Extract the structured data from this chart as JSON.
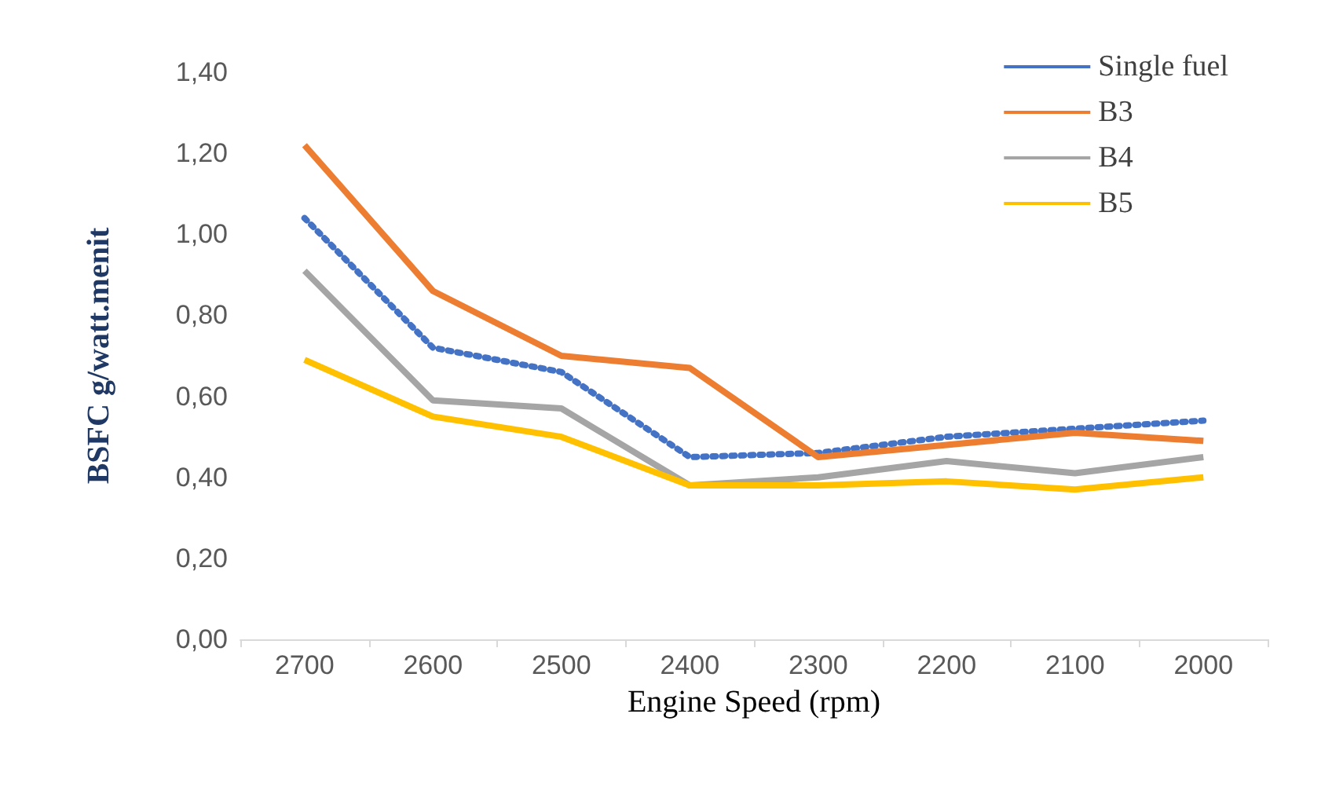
{
  "chart_data": {
    "type": "line",
    "xlabel": "Engine Speed (rpm)",
    "ylabel": "BSFC g/watt.menit",
    "categories": [
      "2700",
      "2600",
      "2500",
      "2400",
      "2300",
      "2200",
      "2100",
      "2000"
    ],
    "series": [
      {
        "name": "Single fuel",
        "color": "#4472c4",
        "line_style": "dotted",
        "values": [
          1.04,
          0.72,
          0.66,
          0.45,
          0.46,
          0.5,
          0.52,
          0.54
        ]
      },
      {
        "name": "B3",
        "color": "#ed7d31",
        "line_style": "solid",
        "values": [
          1.22,
          0.86,
          0.7,
          0.67,
          0.45,
          0.48,
          0.51,
          0.49
        ]
      },
      {
        "name": "B4",
        "color": "#a5a5a5",
        "line_style": "solid",
        "values": [
          0.91,
          0.59,
          0.57,
          0.38,
          0.4,
          0.44,
          0.41,
          0.45
        ]
      },
      {
        "name": "B5",
        "color": "#ffc000",
        "line_style": "solid",
        "values": [
          0.69,
          0.55,
          0.5,
          0.38,
          0.38,
          0.39,
          0.37,
          0.4
        ]
      }
    ],
    "ylim": [
      0,
      1.4
    ],
    "yticks": [
      {
        "value": 0,
        "label": "0,00"
      },
      {
        "value": 0.2,
        "label": "0,20"
      },
      {
        "value": 0.4,
        "label": "0,40"
      },
      {
        "value": 0.6,
        "label": "0,60"
      },
      {
        "value": 0.8,
        "label": "0,80"
      },
      {
        "value": 1.0,
        "label": "1,00"
      },
      {
        "value": 1.2,
        "label": "1,20"
      },
      {
        "value": 1.4,
        "label": "1,40"
      }
    ],
    "grid": false,
    "legend": "top right",
    "marker": "none"
  }
}
